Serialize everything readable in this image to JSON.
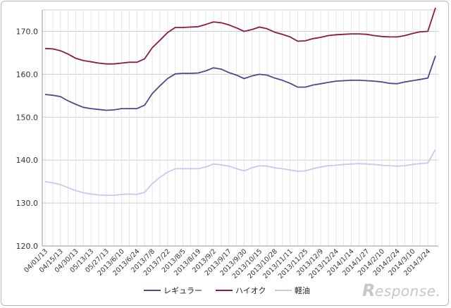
{
  "brand": {
    "mark": "R",
    "text": "esponse."
  },
  "chart_data": {
    "type": "line",
    "title": "",
    "xlabel": "",
    "ylabel": "",
    "ylim": [
      120,
      175
    ],
    "yticks": [
      "120.0",
      "130.0",
      "140.0",
      "150.0",
      "160.0",
      "170.0"
    ],
    "ytick_values": [
      120,
      130,
      140,
      150,
      160,
      170
    ],
    "grid": true,
    "legend_position": "bottom",
    "x_labels": [
      "04/01/13",
      "04/15/13",
      "04/30/13",
      "05/13/13",
      "05/27/13",
      "2013/6/10",
      "2013/6/24",
      "2013/7/8",
      "2013/7/22",
      "2013/8/5",
      "2013/8/19",
      "2013/9/2",
      "2013/9/17",
      "2013/9/30",
      "2013/10/15",
      "2013/10/28",
      "2013/11/11",
      "2013/11/25",
      "2013/12/9",
      "2013/12/24",
      "2014/1/14",
      "2014/1/27",
      "2014/2/10",
      "2014/2/24",
      "2014/3/10",
      "2014/3/24"
    ],
    "n_points": 52,
    "series": [
      {
        "name": "レギュラー",
        "color": "#4b4b8f",
        "values": [
          155.3,
          155.1,
          154.8,
          153.8,
          153.0,
          152.3,
          152.0,
          151.8,
          151.6,
          151.7,
          152.0,
          152.0,
          152.0,
          152.8,
          155.5,
          157.3,
          159.0,
          160.1,
          160.2,
          160.2,
          160.3,
          160.8,
          161.5,
          161.2,
          160.4,
          159.8,
          159.0,
          159.6,
          160.0,
          159.8,
          159.1,
          158.6,
          157.9,
          157.0,
          157.0,
          157.5,
          157.8,
          158.1,
          158.4,
          158.5,
          158.6,
          158.6,
          158.5,
          158.4,
          158.2,
          157.9,
          157.8,
          158.2,
          158.5,
          158.8,
          159.1,
          164.3
        ]
      },
      {
        "name": "ハイオク",
        "color": "#8b1a4a",
        "values": [
          166.0,
          165.9,
          165.5,
          164.7,
          163.7,
          163.2,
          162.9,
          162.6,
          162.4,
          162.4,
          162.6,
          162.8,
          162.8,
          163.6,
          166.2,
          167.9,
          169.7,
          170.9,
          170.9,
          171.0,
          171.1,
          171.6,
          172.2,
          172.0,
          171.5,
          170.8,
          170.0,
          170.4,
          171.0,
          170.6,
          169.8,
          169.3,
          168.7,
          167.7,
          167.8,
          168.3,
          168.6,
          169.0,
          169.2,
          169.3,
          169.4,
          169.4,
          169.3,
          169.0,
          168.8,
          168.7,
          168.7,
          169.0,
          169.5,
          169.9,
          170.0,
          175.5
        ]
      },
      {
        "name": "軽油",
        "color": "#c8c8f0",
        "values": [
          135.0,
          134.7,
          134.3,
          133.6,
          132.9,
          132.4,
          132.1,
          131.9,
          131.8,
          131.8,
          132.0,
          132.1,
          132.0,
          132.5,
          134.5,
          136.0,
          137.2,
          138.0,
          138.0,
          138.0,
          138.0,
          138.4,
          139.1,
          138.9,
          138.6,
          138.0,
          137.5,
          138.2,
          138.7,
          138.6,
          138.2,
          138.0,
          137.7,
          137.4,
          137.5,
          138.0,
          138.4,
          138.7,
          138.8,
          139.0,
          139.1,
          139.2,
          139.1,
          139.0,
          138.8,
          138.7,
          138.6,
          138.7,
          139.0,
          139.2,
          139.3,
          142.5
        ]
      }
    ]
  }
}
